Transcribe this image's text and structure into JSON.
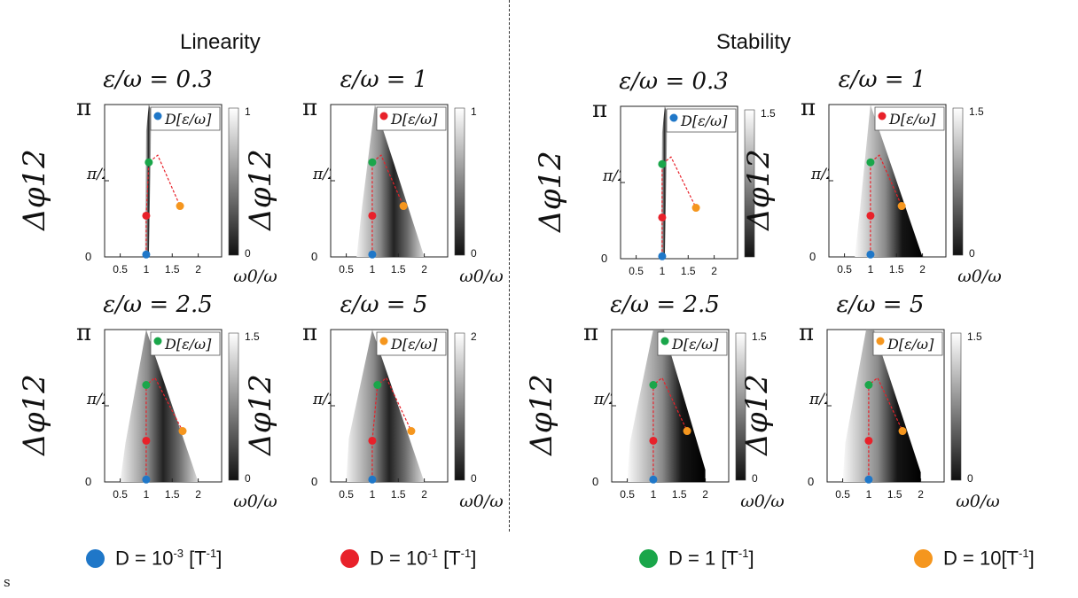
{
  "titles": {
    "left": "Linearity",
    "right": "Stability"
  },
  "stray_text": "s",
  "legend": [
    {
      "text": "D = 10",
      "sup": "-3",
      "unit": " [T",
      "unit_sup": "-1",
      "close": "]",
      "color": "#1f77c8"
    },
    {
      "text": "D = 10",
      "sup": "-1",
      "unit": " [T",
      "unit_sup": "-1",
      "close": "]",
      "color": "#e8212a"
    },
    {
      "text": "D = 1 ",
      "sup": "",
      "unit": "[T",
      "unit_sup": "-1",
      "close": "]",
      "color": "#1aa64a"
    },
    {
      "text": "D = 10",
      "sup": "",
      "unit": "[T",
      "unit_sup": "-1",
      "close": "]",
      "color": "#f5961e"
    }
  ],
  "colors": {
    "D=1e-3": "#1f77c8",
    "D=1e-1": "#e8212a",
    "D=1": "#1aa64a",
    "D=10": "#f5961e"
  },
  "chart_data": [
    {
      "type": "heatmap",
      "group": "Linearity",
      "title": "ε/ω = 0.3",
      "xlabel": "ω0/ω",
      "ylabel": "Δφ12",
      "xticks": [
        "0.5",
        "1",
        "1.5",
        "2"
      ],
      "yticks": [
        "0",
        "π/2",
        "π"
      ],
      "legend": "D[ε/ω]",
      "legend_color": "#1f77c8",
      "colorbar": [
        "0",
        "1"
      ],
      "cmap": "dark_near_peak",
      "region": [
        [
          0.97,
          0
        ],
        [
          1.05,
          0
        ],
        [
          1.1,
          3.0
        ],
        [
          1.05,
          3.14
        ],
        [
          1.0,
          2.6
        ]
      ],
      "points": [
        {
          "x": 1.0,
          "y": 0.05,
          "c": "#1f77c8"
        },
        {
          "x": 1.0,
          "y": 0.85,
          "c": "#e8212a"
        },
        {
          "x": 1.05,
          "y": 1.95,
          "c": "#1aa64a"
        },
        {
          "x": 1.65,
          "y": 1.05,
          "c": "#f5961e"
        }
      ]
    },
    {
      "type": "heatmap",
      "group": "Linearity",
      "title": "ε/ω = 1",
      "xlabel": "ω0/ω",
      "ylabel": "Δφ12",
      "xticks": [
        "0.5",
        "1",
        "1.5",
        "2"
      ],
      "yticks": [
        "0",
        "π/2",
        "π"
      ],
      "legend": "D[ε/ω]",
      "legend_color": "#e8212a",
      "colorbar": [
        "0",
        "1"
      ],
      "cmap": "dark_near_peak",
      "region": [
        [
          0.7,
          0
        ],
        [
          2.0,
          0
        ],
        [
          1.05,
          3.14
        ],
        [
          0.8,
          1.0
        ]
      ],
      "points": [
        {
          "x": 1.0,
          "y": 0.05,
          "c": "#1f77c8"
        },
        {
          "x": 1.0,
          "y": 0.85,
          "c": "#e8212a"
        },
        {
          "x": 1.0,
          "y": 1.95,
          "c": "#1aa64a"
        },
        {
          "x": 1.6,
          "y": 1.05,
          "c": "#f5961e"
        }
      ]
    },
    {
      "type": "heatmap",
      "group": "Linearity",
      "title": "ε/ω = 2.5",
      "xlabel": "ω0/ω",
      "ylabel": "Δφ12",
      "xticks": [
        "0.5",
        "1",
        "1.5",
        "2"
      ],
      "yticks": [
        "0",
        "π/2",
        "π"
      ],
      "legend": "D[ε/ω]",
      "legend_color": "#1aa64a",
      "colorbar": [
        "0",
        "1.5"
      ],
      "cmap": "dark_near_peak",
      "region": [
        [
          0.5,
          0
        ],
        [
          2.0,
          0
        ],
        [
          1.0,
          3.14
        ],
        [
          0.6,
          0.8
        ]
      ],
      "points": [
        {
          "x": 1.0,
          "y": 0.05,
          "c": "#1f77c8"
        },
        {
          "x": 1.0,
          "y": 0.85,
          "c": "#e8212a"
        },
        {
          "x": 1.0,
          "y": 2.0,
          "c": "#1aa64a"
        },
        {
          "x": 1.7,
          "y": 1.05,
          "c": "#f5961e"
        }
      ]
    },
    {
      "type": "heatmap",
      "group": "Linearity",
      "title": "ε/ω = 5",
      "xlabel": "ω0/ω",
      "ylabel": "Δφ12",
      "xticks": [
        "0.5",
        "1",
        "1.5",
        "2"
      ],
      "yticks": [
        "0",
        "π/2",
        "π"
      ],
      "legend": "D[ε/ω]",
      "legend_color": "#f5961e",
      "colorbar": [
        "0",
        "2"
      ],
      "cmap": "dark_near_peak",
      "region": [
        [
          0.5,
          0
        ],
        [
          2.0,
          0
        ],
        [
          1.0,
          3.14
        ],
        [
          0.55,
          0.9
        ]
      ],
      "points": [
        {
          "x": 1.0,
          "y": 0.05,
          "c": "#1f77c8"
        },
        {
          "x": 1.0,
          "y": 0.85,
          "c": "#e8212a"
        },
        {
          "x": 1.1,
          "y": 2.0,
          "c": "#1aa64a"
        },
        {
          "x": 1.75,
          "y": 1.05,
          "c": "#f5961e"
        }
      ]
    },
    {
      "type": "heatmap",
      "group": "Stability",
      "title": "ε/ω = 0.3",
      "xlabel": "",
      "ylabel": "Δφ12",
      "xticks": [
        "0.5",
        "1",
        "1.5",
        "2"
      ],
      "yticks": [
        "0",
        "π/2",
        "π"
      ],
      "legend": "D[ε/ω]",
      "legend_color": "#1f77c8",
      "colorbar": [
        "",
        "1.5"
      ],
      "cmap": "dark_near_peak",
      "region": [
        [
          0.97,
          0
        ],
        [
          1.05,
          0
        ],
        [
          1.1,
          3.0
        ],
        [
          1.05,
          3.14
        ],
        [
          1.0,
          2.6
        ]
      ],
      "points": [
        {
          "x": 1.0,
          "y": 0.05,
          "c": "#1f77c8"
        },
        {
          "x": 1.0,
          "y": 0.85,
          "c": "#e8212a"
        },
        {
          "x": 1.0,
          "y": 1.95,
          "c": "#1aa64a"
        },
        {
          "x": 1.65,
          "y": 1.05,
          "c": "#f5961e"
        }
      ]
    },
    {
      "type": "heatmap",
      "group": "Stability",
      "title": "ε/ω = 1",
      "xlabel": "ω0/ω",
      "ylabel": "Δφ12",
      "xticks": [
        "0.5",
        "1",
        "1.5",
        "2"
      ],
      "yticks": [
        "0",
        "π/2",
        "π"
      ],
      "legend": "D[ε/ω]",
      "legend_color": "#e8212a",
      "colorbar": [
        "0",
        "1.5"
      ],
      "cmap": "dark_right",
      "region": [
        [
          0.7,
          0
        ],
        [
          2.0,
          0
        ],
        [
          1.0,
          3.14
        ],
        [
          0.8,
          1.0
        ]
      ],
      "points": [
        {
          "x": 1.0,
          "y": 0.05,
          "c": "#1f77c8"
        },
        {
          "x": 1.0,
          "y": 0.85,
          "c": "#e8212a"
        },
        {
          "x": 1.0,
          "y": 1.95,
          "c": "#1aa64a"
        },
        {
          "x": 1.6,
          "y": 1.05,
          "c": "#f5961e"
        }
      ]
    },
    {
      "type": "heatmap",
      "group": "Stability",
      "title": "ε/ω = 2.5",
      "xlabel": "ω0/ω",
      "ylabel": "Δφ12",
      "xticks": [
        "0.5",
        "1",
        "1.5",
        "2"
      ],
      "yticks": [
        "0",
        "π/2",
        "π"
      ],
      "legend": "D[ε/ω]",
      "legend_color": "#1aa64a",
      "colorbar": [
        "0",
        "1.5"
      ],
      "cmap": "dark_right",
      "region": [
        [
          0.5,
          0
        ],
        [
          2.0,
          0
        ],
        [
          2.0,
          0.25
        ],
        [
          1.2,
          3.14
        ],
        [
          1.0,
          3.14
        ],
        [
          0.55,
          0.8
        ]
      ],
      "points": [
        {
          "x": 1.0,
          "y": 0.05,
          "c": "#1f77c8"
        },
        {
          "x": 1.0,
          "y": 0.85,
          "c": "#e8212a"
        },
        {
          "x": 1.0,
          "y": 2.0,
          "c": "#1aa64a"
        },
        {
          "x": 1.65,
          "y": 1.05,
          "c": "#f5961e"
        }
      ]
    },
    {
      "type": "heatmap",
      "group": "Stability",
      "title": "ε/ω = 5",
      "xlabel": "ω0/ω",
      "ylabel": "Δφ12",
      "xticks": [
        "0.5",
        "1",
        "1.5",
        "2"
      ],
      "yticks": [
        "0",
        "π/2",
        "π"
      ],
      "legend": "D[ε/ω]",
      "legend_color": "#f5961e",
      "colorbar": [
        "0",
        "1.5"
      ],
      "cmap": "dark_right",
      "region": [
        [
          0.5,
          0
        ],
        [
          2.0,
          0
        ],
        [
          2.0,
          0.2
        ],
        [
          1.1,
          3.14
        ],
        [
          0.95,
          3.14
        ],
        [
          0.55,
          0.8
        ]
      ],
      "points": [
        {
          "x": 1.0,
          "y": 0.05,
          "c": "#1f77c8"
        },
        {
          "x": 1.0,
          "y": 0.85,
          "c": "#e8212a"
        },
        {
          "x": 1.0,
          "y": 2.0,
          "c": "#1aa64a"
        },
        {
          "x": 1.65,
          "y": 1.05,
          "c": "#f5961e"
        }
      ]
    }
  ]
}
